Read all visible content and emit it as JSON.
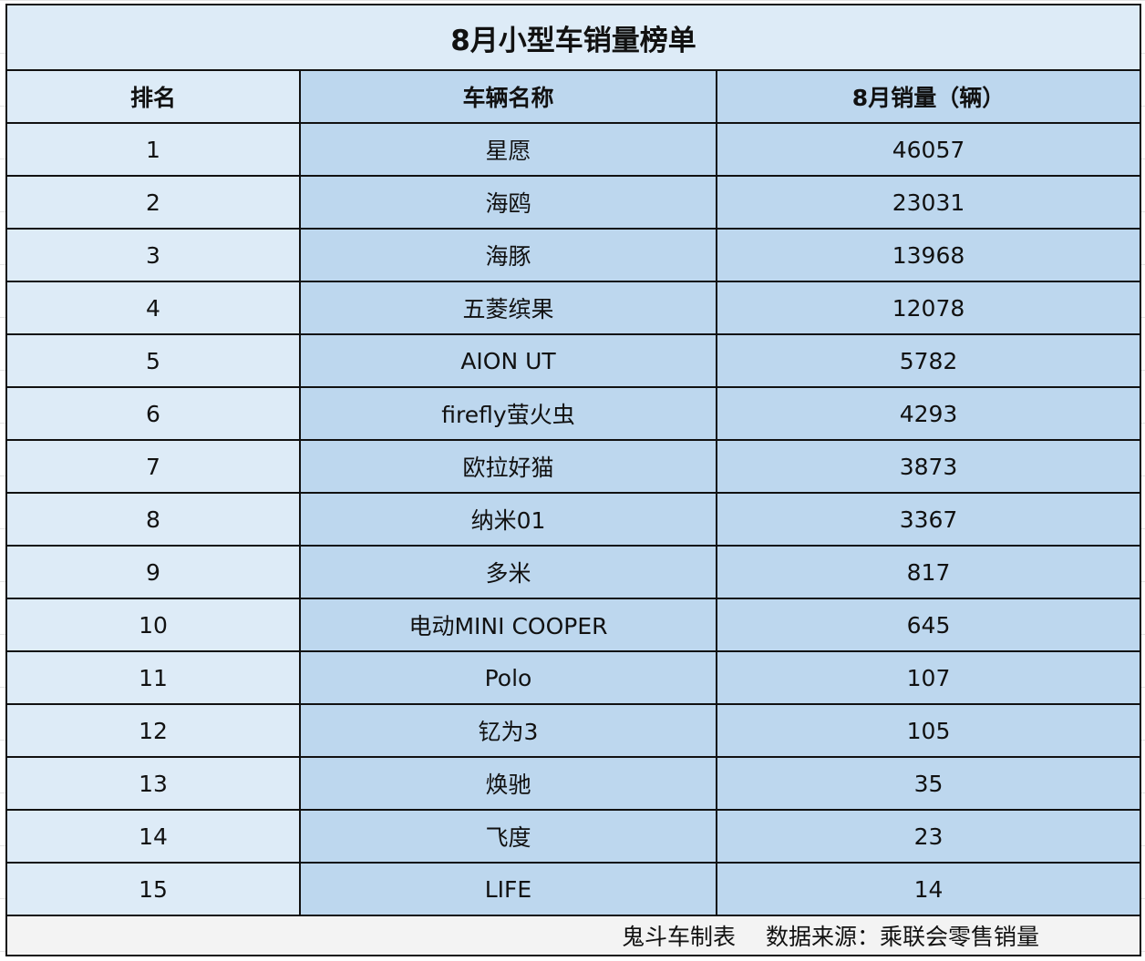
{
  "title": "8月小型车销量榜单",
  "columns": [
    "排名",
    "车辆名称",
    "8月销量（辆）"
  ],
  "rows": [
    [
      "1",
      "星愿",
      "46057"
    ],
    [
      "2",
      "海鸥",
      "23031"
    ],
    [
      "3",
      "海豚",
      "13968"
    ],
    [
      "4",
      "五菱缤果",
      "12078"
    ],
    [
      "5",
      "AION UT",
      "5782"
    ],
    [
      "6",
      "firefly萤火虫",
      "4293"
    ],
    [
      "7",
      "欧拉好猫",
      "3873"
    ],
    [
      "8",
      "纳米01",
      "3367"
    ],
    [
      "9",
      "多米",
      "817"
    ],
    [
      "10",
      "电动MINI COOPER",
      "645"
    ],
    [
      "11",
      "Polo",
      "107"
    ],
    [
      "12",
      "钇为3",
      "105"
    ],
    [
      "13",
      "焕驰",
      "35"
    ],
    [
      "14",
      "飞度",
      "23"
    ],
    [
      "15",
      "LIFE",
      "14"
    ]
  ],
  "footer": "鬼斗车制表　 数据来源：乘联会零售销量",
  "colors": {
    "rank_column": "#ddebf7",
    "data_columns": "#bdd7ee",
    "border": "#111111"
  }
}
